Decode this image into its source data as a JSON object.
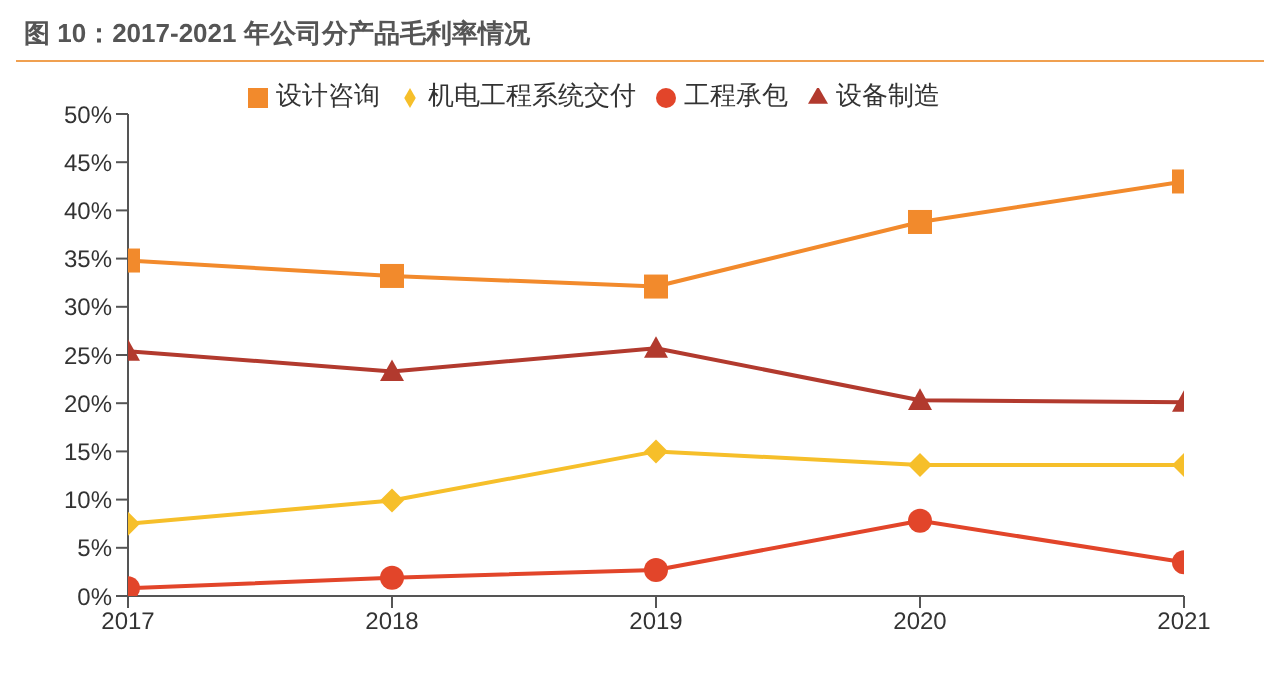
{
  "chart_data": {
    "type": "line",
    "title": "图 10：2017-2021 年公司分产品毛利率情况",
    "categories": [
      "2017",
      "2018",
      "2019",
      "2020",
      "2021"
    ],
    "series": [
      {
        "name": "设计咨询",
        "color": "#f28a2c",
        "marker": "square",
        "values": [
          34.8,
          33.2,
          32.1,
          38.8,
          43.0
        ]
      },
      {
        "name": "机电工程系统交付",
        "color": "#f6bf2a",
        "marker": "diamond",
        "values": [
          7.5,
          9.9,
          15.0,
          13.6,
          13.6
        ]
      },
      {
        "name": "工程承包",
        "color": "#e2452a",
        "marker": "circle",
        "values": [
          0.8,
          1.9,
          2.7,
          7.8,
          3.5
        ]
      },
      {
        "name": "设备制造",
        "color": "#b23a2e",
        "marker": "triangle",
        "values": [
          25.4,
          23.3,
          25.7,
          20.3,
          20.1
        ]
      }
    ],
    "ylim": [
      0,
      50
    ],
    "yticks": [
      {
        "value": 0,
        "label": "0%"
      },
      {
        "value": 5,
        "label": "5%"
      },
      {
        "value": 10,
        "label": "10%"
      },
      {
        "value": 15,
        "label": "15%"
      },
      {
        "value": 20,
        "label": "20%"
      },
      {
        "value": 25,
        "label": "25%"
      },
      {
        "value": 30,
        "label": "30%"
      },
      {
        "value": 35,
        "label": "35%"
      },
      {
        "value": 40,
        "label": "40%"
      },
      {
        "value": 45,
        "label": "45%"
      },
      {
        "value": 50,
        "label": "50%"
      }
    ],
    "grid": false,
    "legend": "top",
    "line_style": "solid"
  }
}
